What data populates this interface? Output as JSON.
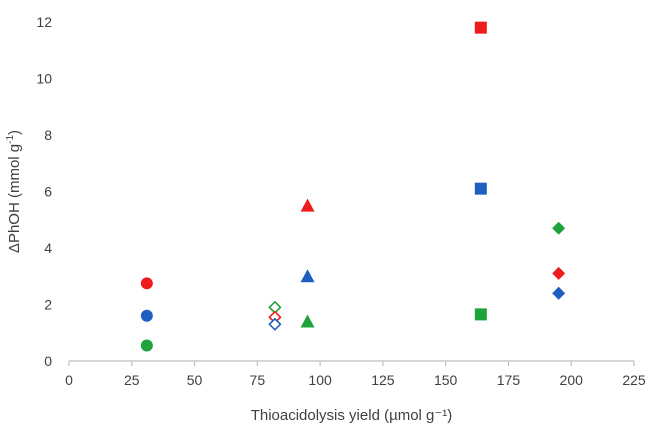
{
  "chart_data": {
    "type": "scatter",
    "title": "",
    "xlabel": "Thioacidolysis yield (µmol g⁻¹)",
    "ylabel_main": "ΔPhOH (mmol g",
    "ylabel_sup": "-1",
    "ylabel_end": ")",
    "xlim": [
      0,
      225
    ],
    "ylim": [
      0,
      12
    ],
    "x_ticks": [
      "0",
      "25",
      "50",
      "75",
      "100",
      "125",
      "150",
      "175",
      "200",
      "225"
    ],
    "y_ticks": [
      "0",
      "2",
      "4",
      "6",
      "8",
      "10",
      "12"
    ],
    "grid": false,
    "legend": false,
    "colors": {
      "red": "#ee1c1c",
      "blue": "#1f5fc0",
      "green": "#1ea33a"
    },
    "points": [
      {
        "x": 31,
        "y": 2.75,
        "marker": "circle",
        "color": "red",
        "filled": true
      },
      {
        "x": 31,
        "y": 1.6,
        "marker": "circle",
        "color": "blue",
        "filled": true
      },
      {
        "x": 31,
        "y": 0.55,
        "marker": "circle",
        "color": "green",
        "filled": true
      },
      {
        "x": 82,
        "y": 1.9,
        "marker": "diamond",
        "color": "green",
        "filled": false
      },
      {
        "x": 82,
        "y": 1.55,
        "marker": "diamond",
        "color": "red",
        "filled": false
      },
      {
        "x": 82,
        "y": 1.3,
        "marker": "diamond",
        "color": "blue",
        "filled": false
      },
      {
        "x": 95,
        "y": 5.5,
        "marker": "triangle",
        "color": "red",
        "filled": true
      },
      {
        "x": 95,
        "y": 3.0,
        "marker": "triangle",
        "color": "blue",
        "filled": true
      },
      {
        "x": 95,
        "y": 1.4,
        "marker": "triangle",
        "color": "green",
        "filled": true
      },
      {
        "x": 164,
        "y": 11.8,
        "marker": "square",
        "color": "red",
        "filled": true
      },
      {
        "x": 164,
        "y": 6.1,
        "marker": "square",
        "color": "blue",
        "filled": true
      },
      {
        "x": 164,
        "y": 1.65,
        "marker": "square",
        "color": "green",
        "filled": true
      },
      {
        "x": 195,
        "y": 4.7,
        "marker": "diamond",
        "color": "green",
        "filled": true
      },
      {
        "x": 195,
        "y": 3.1,
        "marker": "diamond",
        "color": "red",
        "filled": true
      },
      {
        "x": 195,
        "y": 2.4,
        "marker": "diamond",
        "color": "blue",
        "filled": true
      }
    ]
  }
}
